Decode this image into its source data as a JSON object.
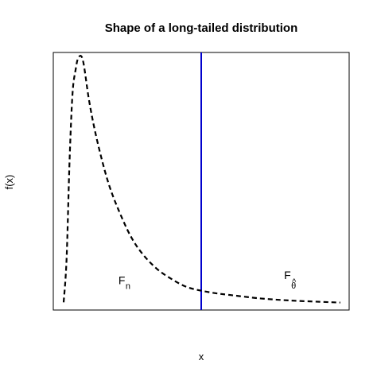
{
  "chart_data": {
    "type": "line",
    "title": "Shape of a long-tailed distribution",
    "xlabel": "x",
    "ylabel": "f(x)",
    "xlim": [
      0,
      1
    ],
    "ylim": [
      0,
      1
    ],
    "axis_ticks_shown": false,
    "grid": false,
    "legend": "none",
    "series": [
      {
        "line_style": "dashed",
        "color": "#000000",
        "x": [
          0.035,
          0.045,
          0.055,
          0.065,
          0.075,
          0.085,
          0.1,
          0.12,
          0.14,
          0.165,
          0.19,
          0.22,
          0.26,
          0.3,
          0.35,
          0.4,
          0.45,
          0.5,
          0.55,
          0.6,
          0.7,
          0.8,
          0.9,
          0.97
        ],
        "y": [
          0.03,
          0.2,
          0.58,
          0.84,
          0.93,
          0.98,
          0.97,
          0.82,
          0.7,
          0.58,
          0.48,
          0.39,
          0.29,
          0.22,
          0.16,
          0.12,
          0.09,
          0.075,
          0.065,
          0.058,
          0.045,
          0.037,
          0.032,
          0.029
        ]
      }
    ],
    "vertical_line": {
      "x": 0.5,
      "color": "#0000cc"
    },
    "annotations": [
      {
        "main": "F",
        "sub": "n",
        "sub_position": "below",
        "x": 0.22,
        "y": 0.1
      },
      {
        "main": "F",
        "sub": "θ",
        "sub_position": "below",
        "sub_accent": "^",
        "x": 0.78,
        "y": 0.12
      }
    ]
  }
}
